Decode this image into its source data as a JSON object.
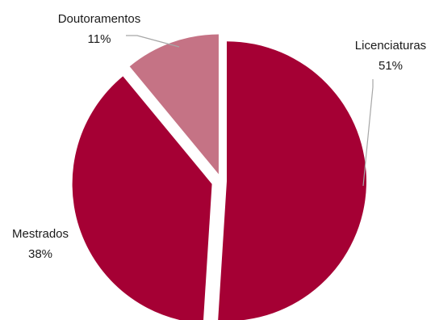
{
  "chart_data": {
    "type": "pie",
    "title": "",
    "slices": [
      {
        "label": "Licenciaturas",
        "value": 51,
        "display": "51%",
        "color": "#A50034"
      },
      {
        "label": "Mestrados",
        "value": 38,
        "display": "38%",
        "color": "#A50034"
      },
      {
        "label": "Doutoramentos",
        "value": 11,
        "display": "11%",
        "color": "#C57385"
      }
    ],
    "legend": "none",
    "data_labels": "outside with leader lines"
  }
}
